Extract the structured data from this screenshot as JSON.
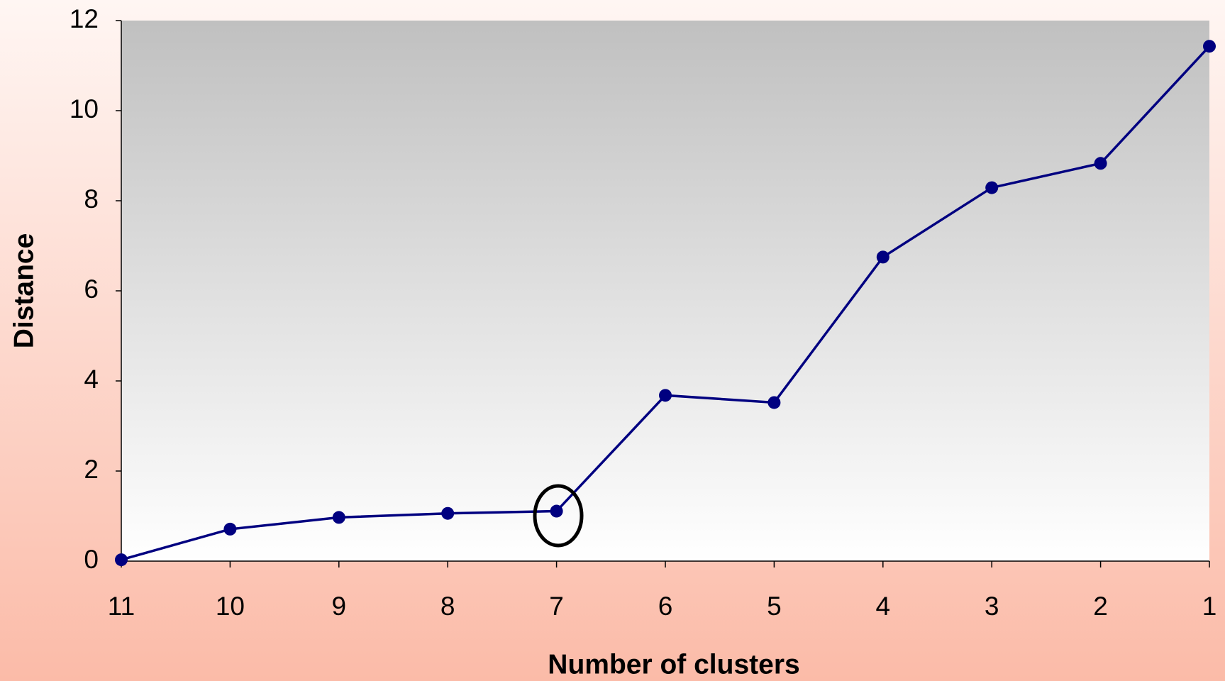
{
  "chart_data": {
    "type": "line",
    "x_label": "Number of clusters",
    "y_label": "Distance",
    "categories": [
      "11",
      "10",
      "9",
      "8",
      "7",
      "6",
      "5",
      "4",
      "3",
      "2",
      "1"
    ],
    "values": [
      0.03,
      0.71,
      0.97,
      1.06,
      1.11,
      3.68,
      3.52,
      6.75,
      8.29,
      8.83,
      11.43
    ],
    "color": "#000080",
    "ylim": [
      0,
      12
    ],
    "yticks": [
      0,
      2,
      4,
      6,
      8,
      10,
      12
    ],
    "grid": false
  }
}
